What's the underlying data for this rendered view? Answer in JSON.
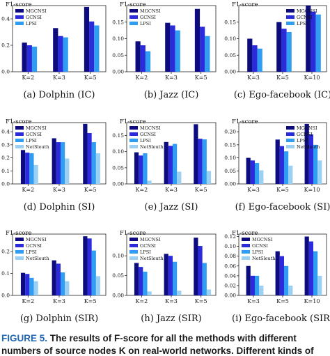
{
  "colors": {
    "MGCNSI": "#0c0c7e",
    "GCNSI": "#2b2bdc",
    "LPSI": "#2e9df2",
    "NetSleuth": "#9bd0f5"
  },
  "caption": {
    "label": "FIGURE 5.",
    "line1": "The results of F-score for all the methods with different",
    "line2": "numbers of source nodes K on real-world networks. Different kinds of"
  },
  "chart_data": [
    {
      "type": "bar",
      "panel": "(a) Dolphin (IC)",
      "ylabel": "F1-score",
      "categories": [
        "K=2",
        "K=3",
        "K=5"
      ],
      "ylim": [
        0,
        0.5
      ],
      "yticks": [
        0.0,
        0.2,
        0.4
      ],
      "legend": "top-left",
      "series": [
        {
          "name": "MGCNSI",
          "values": [
            0.22,
            0.33,
            0.49
          ]
        },
        {
          "name": "GCNSI",
          "values": [
            0.2,
            0.27,
            0.38
          ]
        },
        {
          "name": "LPSI",
          "values": [
            0.19,
            0.26,
            0.35
          ]
        }
      ]
    },
    {
      "type": "bar",
      "panel": "(b) Jazz (IC)",
      "ylabel": "F1-score",
      "categories": [
        "K=2",
        "K=3",
        "K=5"
      ],
      "ylim": [
        0,
        0.2
      ],
      "yticks": [
        0.0,
        0.05,
        0.1,
        0.15
      ],
      "legend": "top-left",
      "series": [
        {
          "name": "MGCNSI",
          "values": [
            0.092,
            0.148,
            0.19
          ]
        },
        {
          "name": "GCNSI",
          "values": [
            0.08,
            0.14,
            0.136
          ]
        },
        {
          "name": "LPSI",
          "values": [
            0.062,
            0.125,
            0.108
          ]
        }
      ]
    },
    {
      "type": "bar",
      "panel": "(c) Ego-facebook (IC)",
      "ylabel": "F1-score",
      "categories": [
        "K=3",
        "K=5",
        "K=10"
      ],
      "ylim": [
        0,
        0.2
      ],
      "yticks": [
        0.0,
        0.05,
        0.1,
        0.15
      ],
      "legend": "top-right",
      "series": [
        {
          "name": "MGCNSI",
          "values": [
            0.1,
            0.15,
            0.2
          ]
        },
        {
          "name": "GCNSI",
          "values": [
            0.08,
            0.13,
            0.182
          ]
        },
        {
          "name": "LPSI",
          "values": [
            0.07,
            0.12,
            0.173
          ]
        }
      ]
    },
    {
      "type": "bar",
      "panel": "(d) Dolphin (SI)",
      "ylabel": "F1-score",
      "categories": [
        "K=2",
        "K=3",
        "K=5"
      ],
      "ylim": [
        0,
        0.47
      ],
      "yticks": [
        0.0,
        0.1,
        0.2,
        0.3,
        0.4
      ],
      "legend": "top-left",
      "series": [
        {
          "name": "MGCNSI",
          "values": [
            0.26,
            0.35,
            0.46
          ]
        },
        {
          "name": "GCNSI",
          "values": [
            0.24,
            0.32,
            0.39
          ]
        },
        {
          "name": "LPSI",
          "values": [
            0.235,
            0.32,
            0.32
          ]
        },
        {
          "name": "NetSleuth",
          "values": [
            0.145,
            0.195,
            0.235
          ]
        }
      ]
    },
    {
      "type": "bar",
      "panel": "(e) Jazz (SI)",
      "ylabel": "F1-score",
      "categories": [
        "K=2",
        "K=3",
        "K=5"
      ],
      "ylim": [
        0,
        0.19
      ],
      "yticks": [
        0.0,
        0.05,
        0.1,
        0.15
      ],
      "legend": "top-left",
      "series": [
        {
          "name": "MGCNSI",
          "values": [
            0.098,
            0.13,
            0.185
          ]
        },
        {
          "name": "GCNSI",
          "values": [
            0.088,
            0.118,
            0.14
          ]
        },
        {
          "name": "LPSI",
          "values": [
            0.095,
            0.124,
            0.138
          ]
        },
        {
          "name": "NetSleuth",
          "values": [
            0.01,
            0.038,
            0.04
          ]
        }
      ]
    },
    {
      "type": "bar",
      "panel": "(f) Ego-facebook (SI)",
      "ylabel": "F1-score",
      "categories": [
        "K=3",
        "K=5",
        "K=10"
      ],
      "ylim": [
        0,
        0.235
      ],
      "yticks": [
        0.0,
        0.05,
        0.1,
        0.15,
        0.2
      ],
      "legend": "top-right",
      "series": [
        {
          "name": "MGCNSI",
          "values": [
            0.1,
            0.17,
            0.23
          ]
        },
        {
          "name": "GCNSI",
          "values": [
            0.09,
            0.145,
            0.19
          ]
        },
        {
          "name": "LPSI",
          "values": [
            0.08,
            0.125,
            0.15
          ]
        },
        {
          "name": "NetSleuth",
          "values": [
            0.052,
            0.07,
            0.09
          ]
        }
      ]
    },
    {
      "type": "bar",
      "panel": "(g) Dolphin (SIR)",
      "ylabel": "F1-score",
      "categories": [
        "K=2",
        "K=3",
        "K=5"
      ],
      "ylim": [
        0,
        0.28
      ],
      "yticks": [
        0.0,
        0.1,
        0.2
      ],
      "legend": "top-left",
      "series": [
        {
          "name": "MGCNSI",
          "values": [
            0.103,
            0.16,
            0.27
          ]
        },
        {
          "name": "GCNSI",
          "values": [
            0.098,
            0.145,
            0.26
          ]
        },
        {
          "name": "LPSI",
          "values": [
            0.08,
            0.105,
            0.205
          ]
        },
        {
          "name": "NetSleuth",
          "values": [
            0.065,
            0.065,
            0.088
          ]
        }
      ]
    },
    {
      "type": "bar",
      "panel": "(h) Jazz (SIR)",
      "ylabel": "F1-score",
      "categories": [
        "K=2",
        "K=3",
        "K=5"
      ],
      "ylim": [
        0,
        0.155
      ],
      "yticks": [
        0.0,
        0.05,
        0.1
      ],
      "legend": "top-left",
      "series": [
        {
          "name": "MGCNSI",
          "values": [
            0.082,
            0.105,
            0.146
          ]
        },
        {
          "name": "GCNSI",
          "values": [
            0.072,
            0.1,
            0.125
          ]
        },
        {
          "name": "LPSI",
          "values": [
            0.06,
            0.085,
            0.082
          ]
        },
        {
          "name": "NetSleuth",
          "values": [
            0.01,
            0.012,
            0.015
          ]
        }
      ]
    },
    {
      "type": "bar",
      "panel": "(i) Ego-facebook (SIR)",
      "ylabel": "F1-score",
      "categories": [
        "K=3",
        "K=5",
        "K=10"
      ],
      "ylim": [
        0,
        0.125
      ],
      "yticks": [
        0.0,
        0.02,
        0.04,
        0.06,
        0.08,
        0.1,
        0.12
      ],
      "legend": "top-left",
      "series": [
        {
          "name": "MGCNSI",
          "values": [
            0.06,
            0.09,
            0.12
          ]
        },
        {
          "name": "GCNSI",
          "values": [
            0.04,
            0.08,
            0.11
          ]
        },
        {
          "name": "LPSI",
          "values": [
            0.04,
            0.06,
            0.09
          ]
        },
        {
          "name": "NetSleuth",
          "values": [
            0.02,
            0.02,
            0.04
          ]
        }
      ]
    }
  ]
}
